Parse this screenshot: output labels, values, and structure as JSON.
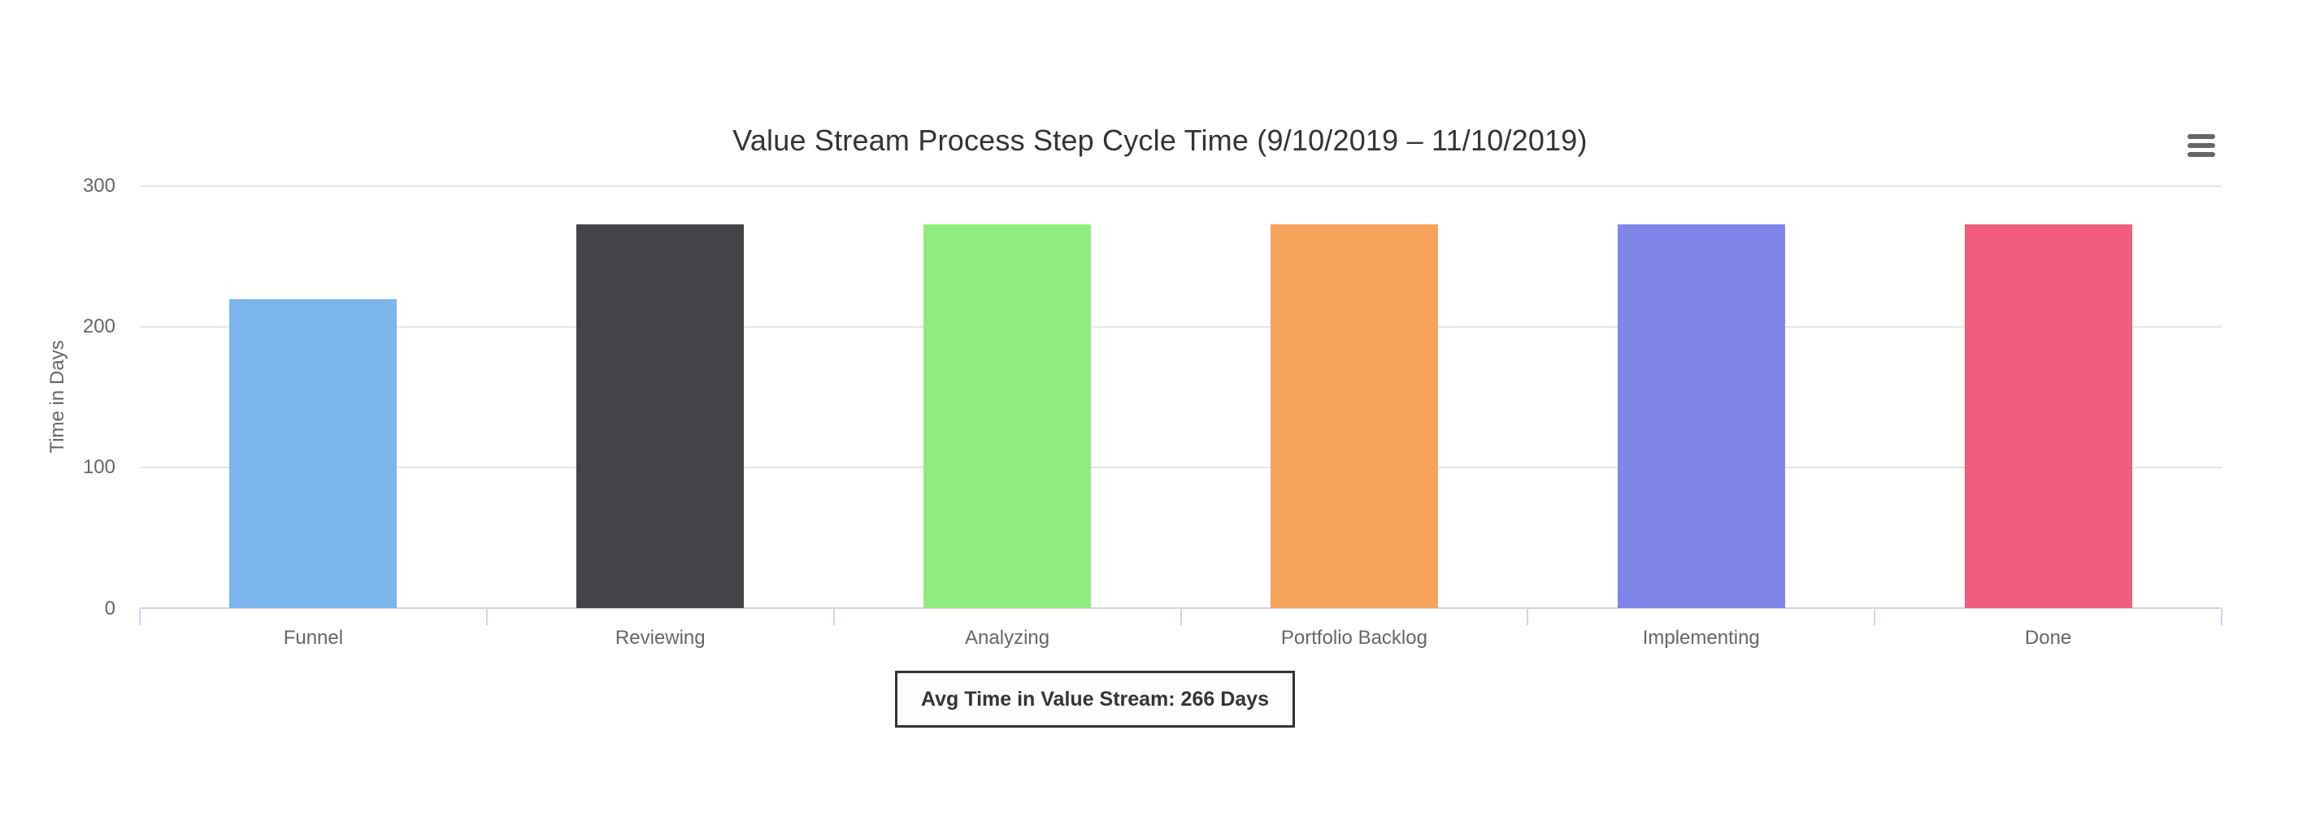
{
  "chart": {
    "title": "Value Stream Process Step Cycle Time (9/10/2019 – 11/10/2019)",
    "yaxis_title": "Time in Days",
    "context_menu_icon": "hamburger-icon"
  },
  "chart_data": {
    "type": "bar",
    "title": "Value Stream Process Step Cycle Time (9/10/2019 – 11/10/2019)",
    "categories": [
      "Funnel",
      "Reviewing",
      "Analyzing",
      "Portfolio Backlog",
      "Implementing",
      "Done"
    ],
    "values": [
      220,
      273,
      273,
      273,
      273,
      273
    ],
    "bar_colors": [
      "#7cb5ec",
      "#434348",
      "#90ed7d",
      "#f7a35c",
      "#8085e9",
      "#f15c80"
    ],
    "xlabel": "",
    "ylabel": "Time in Days",
    "yticks": [
      0,
      100,
      200,
      300
    ],
    "ylim": [
      0,
      300
    ],
    "grid": true,
    "legend": "none",
    "annotation": "Avg Time in Value Stream: 266 Days"
  },
  "footer": {
    "avg_label": "Avg Time in Value Stream: 266 Days"
  },
  "colors": {
    "grid_line": "#e6e6e6",
    "axis_line": "#ccd6eb",
    "axis_text": "#666666",
    "title_text": "#333333",
    "avg_box_border": "#333333"
  }
}
